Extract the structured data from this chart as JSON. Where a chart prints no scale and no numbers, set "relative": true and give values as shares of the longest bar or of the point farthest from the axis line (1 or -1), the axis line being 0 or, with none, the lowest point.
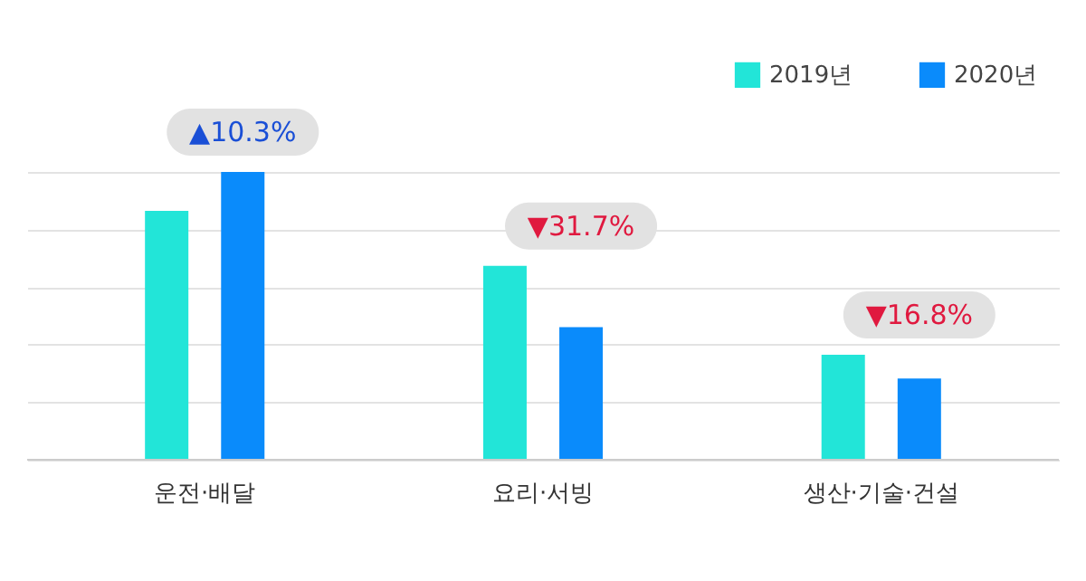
{
  "chart_data": {
    "type": "bar",
    "relative": true,
    "categories": [
      "운전·배달",
      "요리·서빙",
      "생산·기술·건설"
    ],
    "series": [
      {
        "name": "2019년",
        "color": "#22e5d8",
        "values": [
          0.865,
          0.674,
          0.365
        ]
      },
      {
        "name": "2020년",
        "color": "#0a8bfb",
        "values": [
          1,
          0.461,
          0.282
        ]
      }
    ],
    "annotations": [
      "▲10.3%",
      "▼31.7%",
      "▼16.8%"
    ],
    "grid": "y",
    "legend": "top right"
  }
}
